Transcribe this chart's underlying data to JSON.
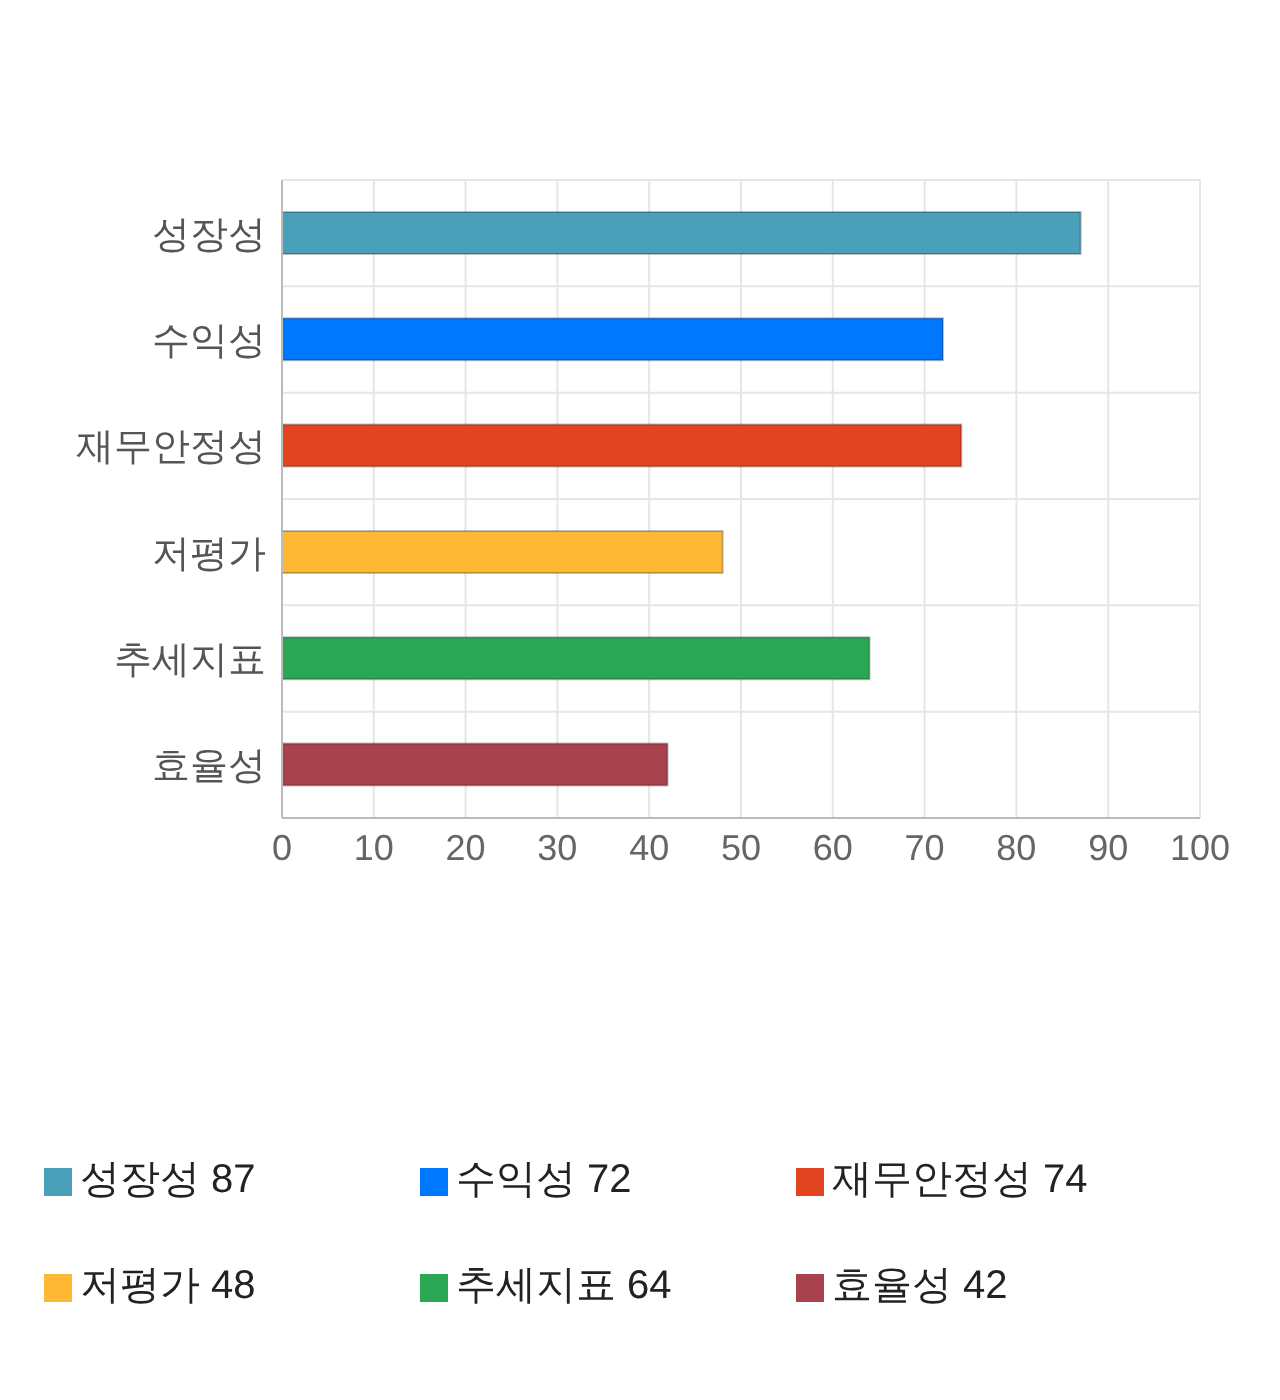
{
  "chart_data": {
    "type": "bar",
    "orientation": "horizontal",
    "stacked": true,
    "categories": [
      "성장성",
      "수익성",
      "재무안정성",
      "저평가",
      "추세지표",
      "효율성"
    ],
    "series": [
      {
        "name": "성장성 87",
        "color": "#4aa0b9",
        "values": [
          87,
          null,
          null,
          null,
          null,
          null
        ]
      },
      {
        "name": "수익성 72",
        "color": "#0077ff",
        "values": [
          null,
          72,
          null,
          null,
          null,
          null
        ]
      },
      {
        "name": "재무안정성 74",
        "color": "#e24421",
        "values": [
          null,
          null,
          74,
          null,
          null,
          null
        ]
      },
      {
        "name": "저평가 48",
        "color": "#ffb833",
        "values": [
          null,
          null,
          null,
          48,
          null,
          null
        ]
      },
      {
        "name": "추세지표 64",
        "color": "#2aa655",
        "values": [
          null,
          null,
          null,
          null,
          64,
          null
        ]
      },
      {
        "name": "효율성 42",
        "color": "#a7424e",
        "values": [
          null,
          null,
          null,
          null,
          null,
          42
        ]
      }
    ],
    "xlim": [
      0,
      100
    ],
    "xticks": [
      0,
      10,
      20,
      30,
      40,
      50,
      60,
      70,
      80,
      90,
      100
    ],
    "grid": true,
    "legend": "bottom"
  }
}
